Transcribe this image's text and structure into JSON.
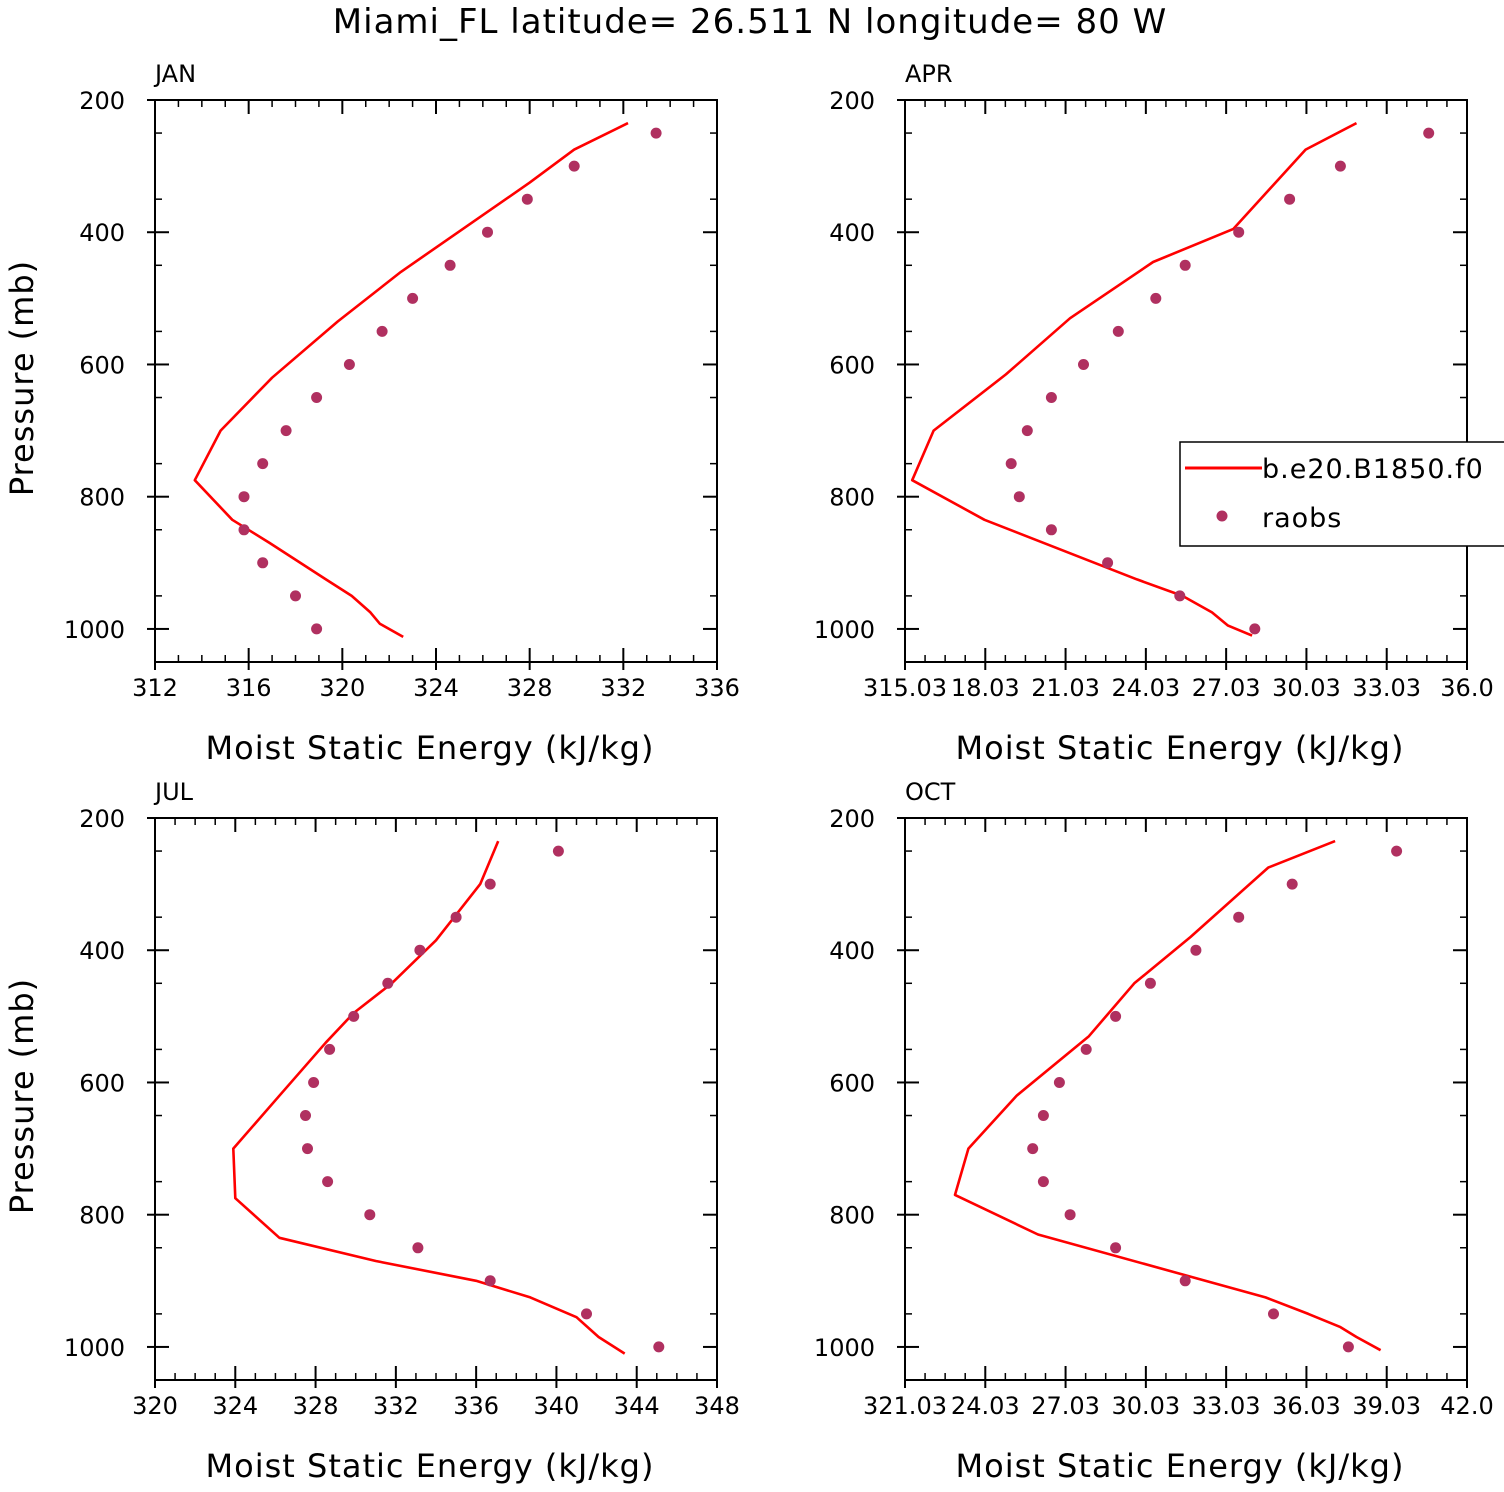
{
  "figure_title": "Miami_FL  latitude= 26.511 N longitude= 80 W",
  "legend": {
    "model_label": "b.e20.B1850.f0",
    "obs_label": "raobs"
  },
  "colors": {
    "model_line": "#ff0000",
    "obs_marker": "#b03060"
  },
  "chart_data": [
    {
      "type": "line",
      "title": "JAN",
      "xlabel": "Moist Static Energy (kJ/kg)",
      "ylabel": "Pressure (mb)",
      "xlim": [
        312,
        336
      ],
      "ylim": [
        1050,
        200
      ],
      "y_inverted": true,
      "xticks": [
        312,
        316,
        320,
        324,
        328,
        332,
        336
      ],
      "xtick_labels": [
        "312",
        "316",
        "320",
        "324",
        "328",
        "332",
        "336"
      ],
      "yticks": [
        200,
        400,
        600,
        800,
        1000
      ],
      "yticks_labels": [
        "200",
        "400",
        "600",
        "800",
        "1000"
      ],
      "series": [
        {
          "name": "b.e20.B1850.f0",
          "kind": "line",
          "x": [
            322.6,
            321.6,
            321.2,
            320.4,
            319.3,
            316.9,
            315.3,
            313.7,
            314.8,
            317.0,
            319.8,
            322.5,
            328.0,
            329.9,
            332.2
          ],
          "y": [
            1012,
            992,
            975,
            950,
            925,
            870,
            835,
            775,
            700,
            620,
            535,
            460,
            325,
            275,
            235
          ]
        },
        {
          "name": "raobs",
          "kind": "scatter",
          "x": [
            333.4,
            329.9,
            327.9,
            326.2,
            324.6,
            323.0,
            321.7,
            320.3,
            318.9,
            317.6,
            316.6,
            315.8,
            315.8,
            316.6,
            318.0,
            318.9
          ],
          "y": [
            250,
            300,
            350,
            400,
            450,
            500,
            550,
            600,
            650,
            700,
            750,
            800,
            850,
            900,
            950,
            1000
          ]
        }
      ]
    },
    {
      "type": "line",
      "title": "APR",
      "xlabel": "Moist Static Energy (kJ/kg)",
      "ylabel": "",
      "xlim": [
        315.03,
        336.03
      ],
      "ylim": [
        1050,
        200
      ],
      "y_inverted": true,
      "xticks": [
        315.03,
        318.03,
        321.03,
        324.03,
        327.03,
        330.03,
        333.03,
        336.03
      ],
      "xtick_labels": [
        "315.03",
        "18.03",
        "21.03",
        "24.03",
        "27.03",
        "30.03",
        "33.03",
        "36.0"
      ],
      "yticks": [
        200,
        400,
        600,
        800,
        1000
      ],
      "yticks_labels": [
        "200",
        "400",
        "600",
        "800",
        "1000"
      ],
      "series": [
        {
          "name": "b.e20.B1850.f0",
          "kind": "line",
          "x": [
            328.0,
            327.1,
            326.5,
            325.4,
            323.7,
            318.0,
            315.3,
            316.1,
            318.8,
            321.2,
            324.3,
            327.3,
            330.0,
            331.9
          ],
          "y": [
            1010,
            995,
            975,
            950,
            925,
            835,
            775,
            700,
            615,
            530,
            445,
            395,
            275,
            235
          ]
        },
        {
          "name": "raobs",
          "kind": "scatter",
          "x": [
            334.6,
            331.3,
            329.4,
            327.5,
            325.5,
            324.4,
            323.0,
            321.7,
            320.5,
            319.6,
            319.0,
            319.3,
            320.5,
            322.6,
            325.3,
            328.1
          ],
          "y": [
            250,
            300,
            350,
            400,
            450,
            500,
            550,
            600,
            650,
            700,
            750,
            800,
            850,
            900,
            950,
            1000
          ]
        }
      ]
    },
    {
      "type": "line",
      "title": "JUL",
      "xlabel": "Moist Static Energy (kJ/kg)",
      "ylabel": "Pressure (mb)",
      "xlim": [
        320,
        348
      ],
      "ylim": [
        1050,
        200
      ],
      "y_inverted": true,
      "xticks": [
        320,
        324,
        328,
        332,
        336,
        340,
        344,
        348
      ],
      "xtick_labels": [
        "320",
        "324",
        "328",
        "332",
        "336",
        "340",
        "344",
        "348"
      ],
      "yticks": [
        200,
        400,
        600,
        800,
        1000
      ],
      "yticks_labels": [
        "200",
        "400",
        "600",
        "800",
        "1000"
      ],
      "series": [
        {
          "name": "b.e20.B1850.f0",
          "kind": "line",
          "x": [
            343.4,
            342.1,
            341.0,
            338.7,
            336.0,
            331.0,
            326.2,
            324.0,
            323.9,
            326.2,
            328.5,
            329.9,
            331.8,
            334.0,
            336.2,
            337.1
          ],
          "y": [
            1010,
            985,
            955,
            925,
            900,
            870,
            835,
            775,
            700,
            620,
            540,
            495,
            450,
            385,
            300,
            235
          ]
        },
        {
          "name": "raobs",
          "kind": "scatter",
          "x": [
            340.1,
            336.7,
            335.0,
            333.2,
            331.6,
            329.9,
            328.7,
            327.9,
            327.5,
            327.6,
            328.6,
            330.7,
            333.1,
            336.7,
            341.5,
            345.1
          ],
          "y": [
            250,
            300,
            350,
            400,
            450,
            500,
            550,
            600,
            650,
            700,
            750,
            800,
            850,
            900,
            950,
            1000
          ]
        }
      ]
    },
    {
      "type": "line",
      "title": "OCT",
      "xlabel": "Moist Static Energy (kJ/kg)",
      "ylabel": "",
      "xlim": [
        321.03,
        342.03
      ],
      "ylim": [
        1050,
        200
      ],
      "y_inverted": true,
      "xticks": [
        321.03,
        324.03,
        327.03,
        330.03,
        333.03,
        336.03,
        339.03,
        342.03
      ],
      "xtick_labels": [
        "321.03",
        "24.03",
        "27.03",
        "30.03",
        "33.03",
        "36.03",
        "39.03",
        "42.0"
      ],
      "yticks": [
        200,
        400,
        600,
        800,
        1000
      ],
      "yticks_labels": [
        "200",
        "400",
        "600",
        "800",
        "1000"
      ],
      "series": [
        {
          "name": "b.e20.B1850.f0",
          "kind": "line",
          "x": [
            338.8,
            337.9,
            337.3,
            336.1,
            334.5,
            326.0,
            322.9,
            323.4,
            325.2,
            327.9,
            329.6,
            331.7,
            334.6,
            337.1
          ],
          "y": [
            1005,
            985,
            970,
            950,
            925,
            830,
            770,
            700,
            620,
            530,
            450,
            380,
            275,
            235
          ]
        },
        {
          "name": "raobs",
          "kind": "scatter",
          "x": [
            339.4,
            335.5,
            333.5,
            331.9,
            330.2,
            328.9,
            327.8,
            326.8,
            326.2,
            325.8,
            326.2,
            327.2,
            328.9,
            331.5,
            334.8,
            337.6
          ],
          "y": [
            250,
            300,
            350,
            400,
            450,
            500,
            550,
            600,
            650,
            700,
            750,
            800,
            850,
            900,
            950,
            1000
          ]
        }
      ]
    }
  ]
}
